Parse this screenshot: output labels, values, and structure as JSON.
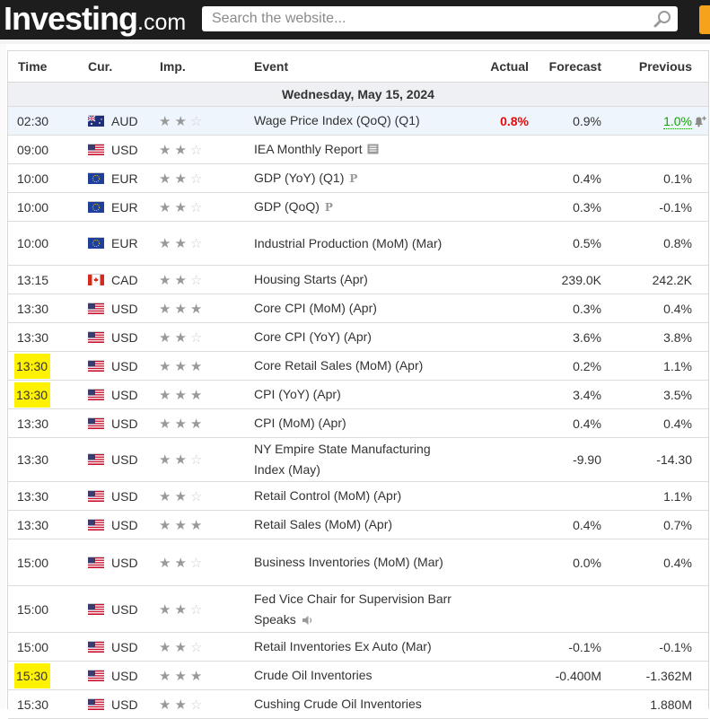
{
  "header": {
    "logo_brand": "Investing",
    "logo_tld": ".com",
    "search_placeholder": "Search the website..."
  },
  "table": {
    "columns": [
      "Time",
      "Cur.",
      "Imp.",
      "Event",
      "Actual",
      "Forecast",
      "Previous"
    ],
    "date_label": "Wednesday, May 15, 2024",
    "rows": [
      {
        "time": "02:30",
        "currency": "AUD",
        "flag": "AU",
        "importance": 2,
        "event": "Wage Price Index (QoQ) (Q1)",
        "actual": "0.8%",
        "forecast": "0.9%",
        "previous": "1.0%",
        "highlight": true
      },
      {
        "time": "09:00",
        "currency": "USD",
        "flag": "US",
        "importance": 2,
        "event": "IEA Monthly Report",
        "actual": "",
        "forecast": "",
        "previous": ""
      },
      {
        "time": "10:00",
        "currency": "EUR",
        "flag": "EU",
        "importance": 2,
        "event": "GDP (YoY) (Q1)",
        "actual": "",
        "forecast": "0.4%",
        "previous": "0.1%"
      },
      {
        "time": "10:00",
        "currency": "EUR",
        "flag": "EU",
        "importance": 2,
        "event": "GDP (QoQ)",
        "actual": "",
        "forecast": "0.3%",
        "previous": "-0.1%"
      },
      {
        "time": "10:00",
        "currency": "EUR",
        "flag": "EU",
        "importance": 2,
        "event": "Industrial Production (MoM) (Mar)",
        "actual": "",
        "forecast": "0.5%",
        "previous": "0.8%"
      },
      {
        "time": "13:15",
        "currency": "CAD",
        "flag": "CA",
        "importance": 2,
        "event": "Housing Starts (Apr)",
        "actual": "",
        "forecast": "239.0K",
        "previous": "242.2K"
      },
      {
        "time": "13:30",
        "currency": "USD",
        "flag": "US",
        "importance": 3,
        "event": "Core CPI (MoM) (Apr)",
        "actual": "",
        "forecast": "0.3%",
        "previous": "0.4%"
      },
      {
        "time": "13:30",
        "currency": "USD",
        "flag": "US",
        "importance": 2,
        "event": "Core CPI (YoY) (Apr)",
        "actual": "",
        "forecast": "3.6%",
        "previous": "3.8%"
      },
      {
        "time": "13:30",
        "currency": "USD",
        "flag": "US",
        "importance": 3,
        "event": "Core Retail Sales (MoM) (Apr)",
        "actual": "",
        "forecast": "0.2%",
        "previous": "1.1%",
        "time_highlight": true
      },
      {
        "time": "13:30",
        "currency": "USD",
        "flag": "US",
        "importance": 3,
        "event": "CPI (YoY) (Apr)",
        "actual": "",
        "forecast": "3.4%",
        "previous": "3.5%",
        "time_highlight": true
      },
      {
        "time": "13:30",
        "currency": "USD",
        "flag": "US",
        "importance": 3,
        "event": "CPI (MoM) (Apr)",
        "actual": "",
        "forecast": "0.4%",
        "previous": "0.4%"
      },
      {
        "time": "13:30",
        "currency": "USD",
        "flag": "US",
        "importance": 2,
        "event": "NY Empire State Manufacturing Index (May)",
        "actual": "",
        "forecast": "-9.90",
        "previous": "-14.30"
      },
      {
        "time": "13:30",
        "currency": "USD",
        "flag": "US",
        "importance": 2,
        "event": "Retail Control (MoM) (Apr)",
        "actual": "",
        "forecast": "",
        "previous": "1.1%"
      },
      {
        "time": "13:30",
        "currency": "USD",
        "flag": "US",
        "importance": 3,
        "event": "Retail Sales (MoM) (Apr)",
        "actual": "",
        "forecast": "0.4%",
        "previous": "0.7%"
      },
      {
        "time": "15:00",
        "currency": "USD",
        "flag": "US",
        "importance": 2,
        "event": "Business Inventories (MoM) (Mar)",
        "actual": "",
        "forecast": "0.0%",
        "previous": "0.4%"
      },
      {
        "time": "15:00",
        "currency": "USD",
        "flag": "US",
        "importance": 2,
        "event": "Fed Vice Chair for Supervision Barr Speaks",
        "actual": "",
        "forecast": "",
        "previous": ""
      },
      {
        "time": "15:00",
        "currency": "USD",
        "flag": "US",
        "importance": 2,
        "event": "Retail Inventories Ex Auto (Mar)",
        "actual": "",
        "forecast": "-0.1%",
        "previous": "-0.1%"
      },
      {
        "time": "15:30",
        "currency": "USD",
        "flag": "US",
        "importance": 3,
        "event": "Crude Oil Inventories",
        "actual": "",
        "forecast": "-0.400M",
        "previous": "-1.362M",
        "time_highlight": true
      },
      {
        "time": "15:30",
        "currency": "USD",
        "flag": "US",
        "importance": 2,
        "event": "Cushing Crude Oil Inventories",
        "actual": "",
        "forecast": "",
        "previous": "1.880M"
      }
    ]
  },
  "colors": {
    "topbar": "#1d1d1d",
    "accent_orange": "#f7a21b",
    "actual_red": "#e00b0b",
    "previous_green": "#0ea600",
    "time_highlight": "#fff200"
  }
}
